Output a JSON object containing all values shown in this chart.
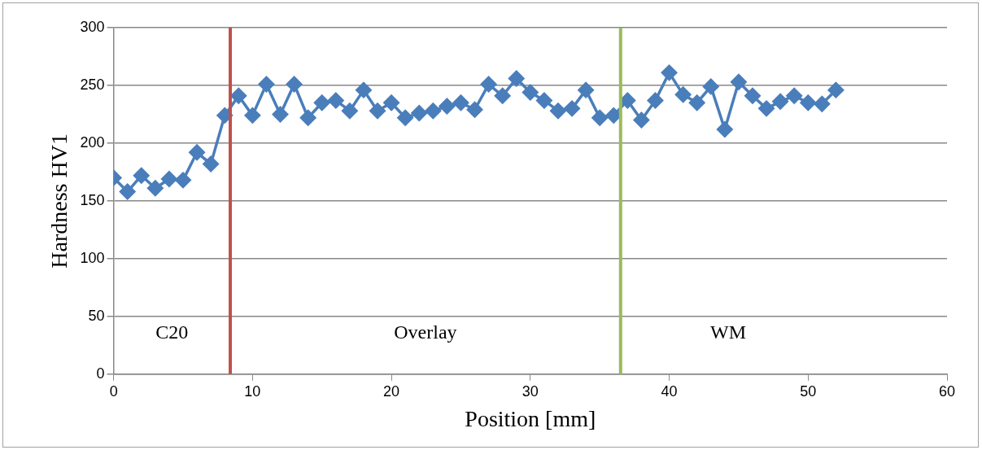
{
  "chart_data": {
    "type": "line",
    "xlabel": "Position [mm]",
    "ylabel": "Hardness HV1",
    "x": [
      0,
      1,
      2,
      3,
      4,
      5,
      6,
      7,
      8,
      9,
      10,
      11,
      12,
      13,
      14,
      15,
      16,
      17,
      18,
      19,
      20,
      21,
      22,
      23,
      24,
      25,
      26,
      27,
      28,
      29,
      30,
      31,
      32,
      33,
      34,
      35,
      36,
      37,
      38,
      39,
      40,
      41,
      42,
      43,
      44,
      45,
      46,
      47,
      48,
      49,
      50,
      51,
      52
    ],
    "series": [
      {
        "color": "#4a7ebb",
        "values": [
          170,
          158,
          172,
          161,
          169,
          168,
          192,
          182,
          224,
          241,
          224,
          251,
          225,
          251,
          222,
          235,
          237,
          228,
          246,
          228,
          235,
          222,
          226,
          228,
          232,
          235,
          229,
          251,
          241,
          256,
          244,
          237,
          228,
          230,
          246,
          222,
          224,
          237,
          220,
          237,
          261,
          242,
          235,
          249,
          212,
          253,
          241,
          230,
          236,
          241,
          235,
          234,
          246
        ]
      }
    ],
    "xlim": [
      0,
      60
    ],
    "xticks": [
      0,
      10,
      20,
      30,
      40,
      50,
      60
    ],
    "ylim": [
      0,
      300
    ],
    "yticks": [
      0,
      50,
      100,
      150,
      200,
      250,
      300
    ],
    "grid": "y",
    "legend": false,
    "marker": "diamond",
    "line_style": "solid",
    "ref_lines": [
      {
        "axis": "x",
        "value": 8.4,
        "color": "#c0504d"
      },
      {
        "axis": "x",
        "value": 36.5,
        "color": "#9bbb59"
      }
    ],
    "annotations": [
      "C20",
      "Overlay",
      "WM"
    ]
  }
}
